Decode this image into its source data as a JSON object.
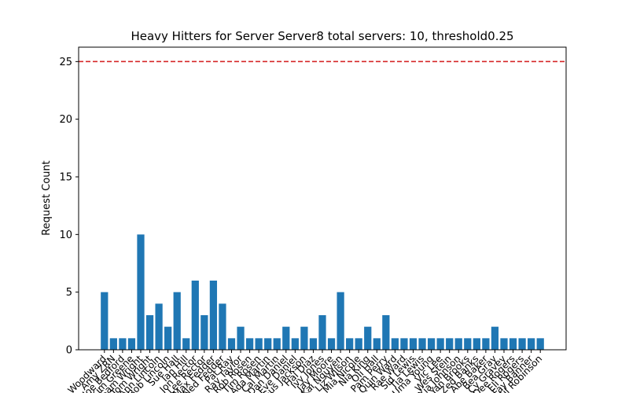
{
  "chart_data": {
    "type": "bar",
    "title": "Heavy Hitters for Server Server8 total servers: 10, threshold0.25",
    "y_label": "Request Count",
    "categories": [
      "Ben Woodward",
      "Amy ZRN",
      "Joe Bedford",
      "Kim Greene",
      "Sam Wright",
      "Tom Wright",
      "Ann Lincoln",
      "Bob Lincoln",
      "Sue Hall",
      "Ian Hill",
      "Jon Rector",
      "Lee Rector",
      "Max Fedder",
      "Ned Fedder",
      "Pat Ray",
      "Ray Taylor",
      "Rob Rosen",
      "Tim Rosen",
      "Ada Martin",
      "Cal Martin",
      "Dan Daniel",
      "Eve Daniel",
      "Gus Jackson",
      "Hal Diaz",
      "Ivy Jones",
      "Jay Moore",
      "Kai Nguyen",
      "Liz Wilson",
      "Mia Nicole",
      "Nia King",
      "Oli Hall",
      "Pam Perry",
      "Quin Ward",
      "Rae Ward",
      "Sid Lewis",
      "Tia Lewis",
      "Uma Young",
      "Vic Lee",
      "Wes Stein",
      "Xia Johnson",
      "Yan Brooks",
      "Zed Banks",
      "Abe Baker",
      "Bea Gray",
      "Cy Gravey",
      "Dee Rogers",
      "Eli Rogers",
      "Fay Banner",
      "Gil Robinson"
    ],
    "values": [
      5,
      1,
      1,
      1,
      10,
      3,
      4,
      2,
      5,
      1,
      6,
      3,
      6,
      4,
      1,
      2,
      1,
      1,
      1,
      1,
      2,
      1,
      2,
      1,
      3,
      1,
      5,
      1,
      1,
      2,
      1,
      3,
      1,
      1,
      1,
      1,
      1,
      1,
      1,
      1,
      1,
      1,
      1,
      2,
      1,
      1,
      1,
      1,
      1
    ],
    "color": "#1f77b4",
    "threshold": 25,
    "threshold_color": "#d62728",
    "ylim": [
      0,
      26.25
    ],
    "yticks": [
      0,
      5,
      10,
      15,
      20,
      25
    ]
  }
}
